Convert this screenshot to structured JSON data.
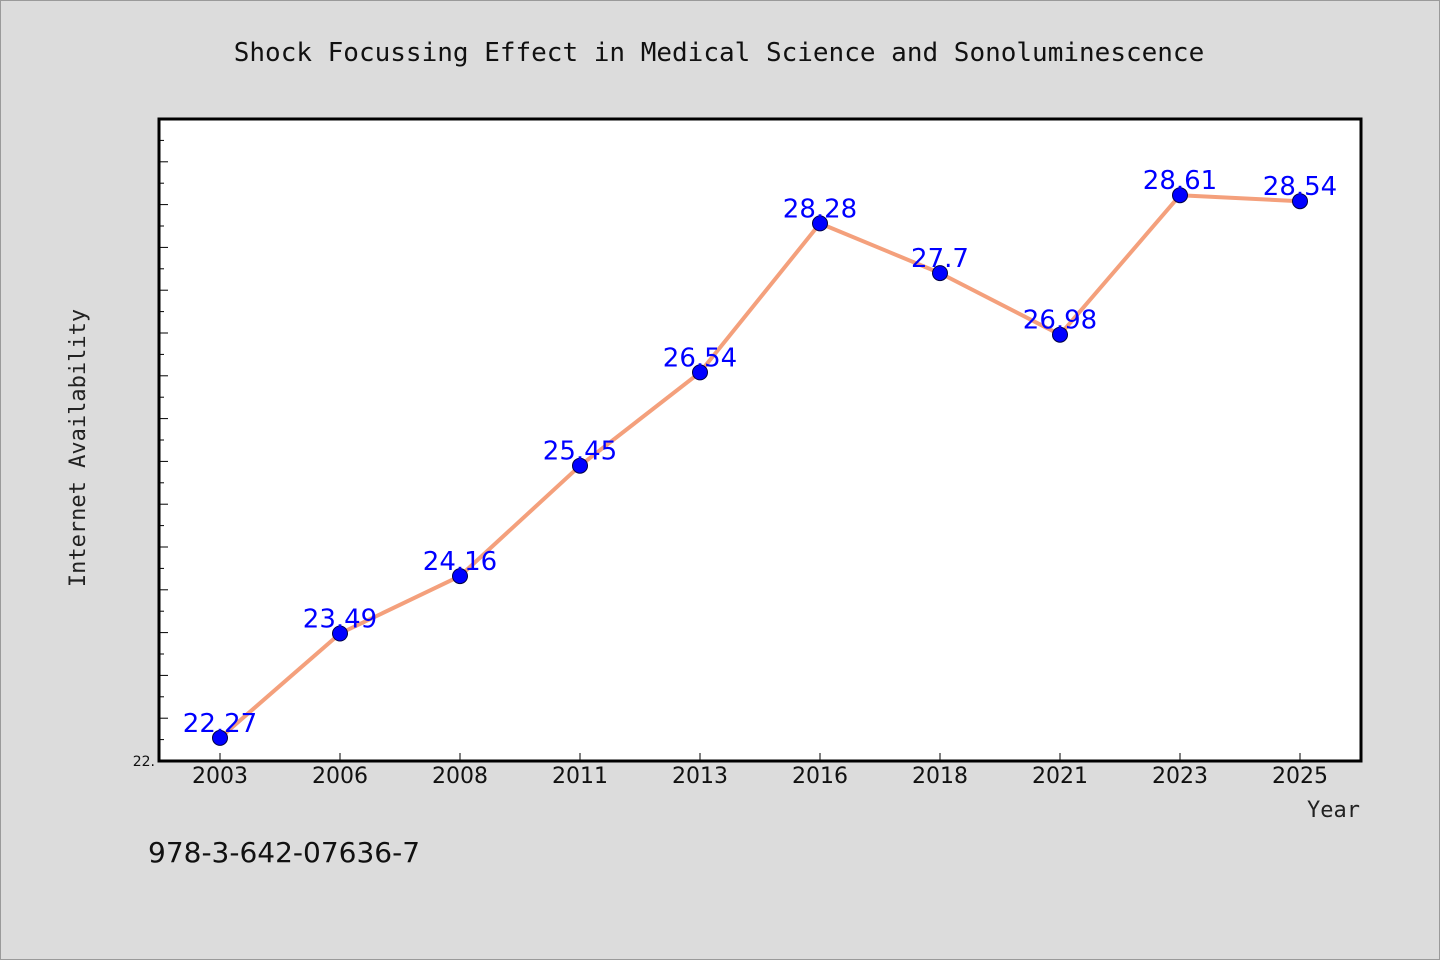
{
  "chart_data": {
    "type": "line",
    "title": "Shock Focussing Effect in Medical Science and Sonoluminescence",
    "xlabel": "Year",
    "ylabel": "Internet Availability",
    "categories": [
      "2003",
      "2006",
      "2008",
      "2011",
      "2013",
      "2016",
      "2018",
      "2021",
      "2023",
      "2025"
    ],
    "series": [
      {
        "values": [
          22.27,
          23.49,
          24.16,
          25.45,
          26.54,
          28.28,
          27.7,
          26.98,
          28.61,
          28.54
        ],
        "labels": [
          "22.27",
          "23.49",
          "24.16",
          "25.45",
          "26.54",
          "28.28",
          "27.7",
          "26.98",
          "28.61",
          "28.54"
        ]
      }
    ],
    "ylim": [
      22.0,
      29.5
    ],
    "y_tick_label": "22.",
    "grid": false,
    "line_color": "#f4a07c",
    "marker_color": "#0000ff",
    "label_color": "#0000ff"
  },
  "footer": {
    "isbn": "978-3-642-07636-7"
  },
  "colors": {
    "background": "#dcdcdc",
    "plot_background": "#ffffff"
  }
}
